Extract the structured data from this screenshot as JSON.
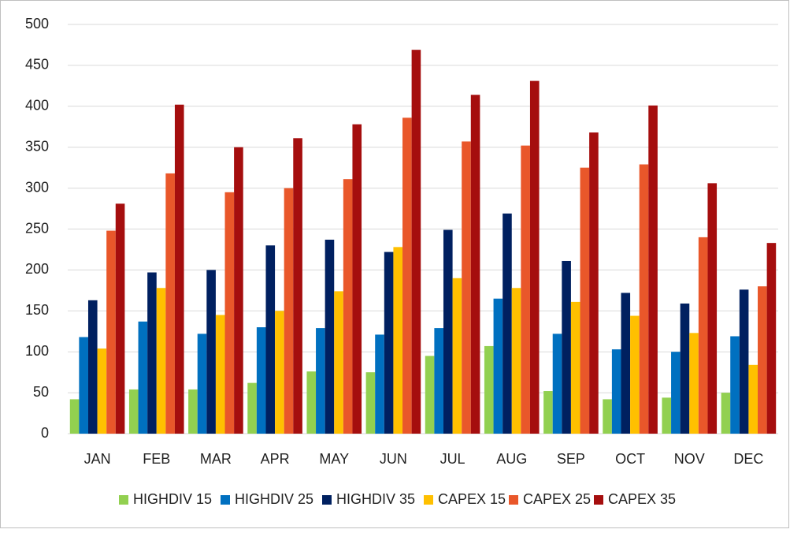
{
  "chart_data": {
    "type": "bar",
    "categories": [
      "JAN",
      "FEB",
      "MAR",
      "APR",
      "MAY",
      "JUN",
      "JUL",
      "AUG",
      "SEP",
      "OCT",
      "NOV",
      "DEC"
    ],
    "series": [
      {
        "name": "HIGHDIV 15",
        "color": "#92d050",
        "values": [
          42,
          54,
          54,
          62,
          76,
          75,
          95,
          107,
          52,
          42,
          44,
          50
        ]
      },
      {
        "name": "HIGHDIV 25",
        "color": "#0070c0",
        "values": [
          118,
          137,
          122,
          130,
          129,
          121,
          129,
          165,
          122,
          103,
          100,
          119
        ]
      },
      {
        "name": "HIGHDIV 35",
        "color": "#002060",
        "values": [
          163,
          197,
          200,
          230,
          237,
          222,
          249,
          269,
          211,
          172,
          159,
          176
        ]
      },
      {
        "name": "CAPEX 15",
        "color": "#ffc000",
        "values": [
          104,
          178,
          145,
          150,
          174,
          228,
          190,
          178,
          161,
          144,
          123,
          84
        ]
      },
      {
        "name": "CAPEX 25",
        "color": "#e9572a",
        "values": [
          248,
          318,
          295,
          300,
          311,
          386,
          357,
          352,
          325,
          329,
          240,
          180
        ]
      },
      {
        "name": "CAPEX 35",
        "color": "#a50e0e",
        "values": [
          281,
          402,
          350,
          361,
          378,
          469,
          414,
          431,
          368,
          401,
          306,
          233
        ]
      }
    ],
    "ylim": [
      0,
      500
    ],
    "yticks": [
      0,
      50,
      100,
      150,
      200,
      250,
      300,
      350,
      400,
      450,
      500
    ],
    "grid": true,
    "legend": "bottom"
  }
}
